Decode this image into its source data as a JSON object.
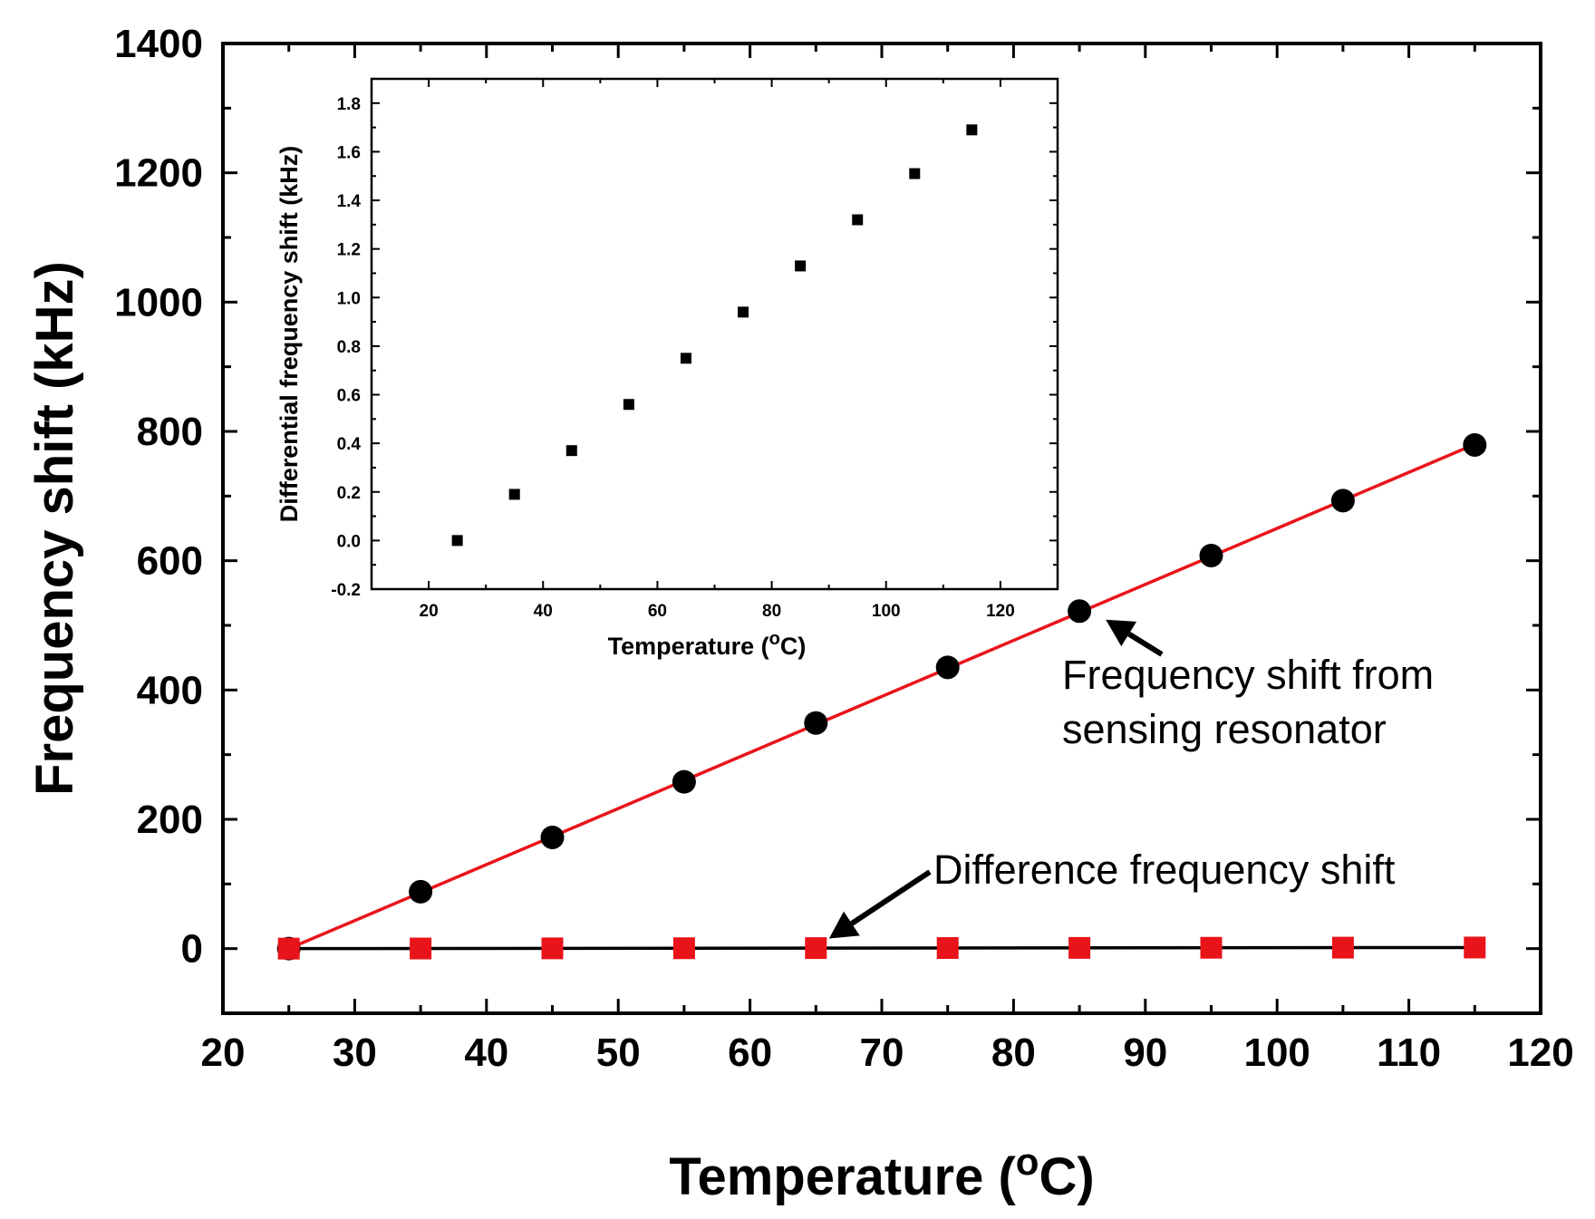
{
  "chart_data": [
    {
      "type": "scatter",
      "xlabel": "Temperature (",
      "xlabel_sup": "o",
      "xlabel_tail": "C)",
      "ylabel": "Frequency shift (kHz)",
      "xlim": [
        20,
        120
      ],
      "ylim": [
        -100,
        1400
      ],
      "xticks": [
        20,
        30,
        40,
        50,
        60,
        70,
        80,
        90,
        100,
        110,
        120
      ],
      "yticks": [
        0,
        200,
        400,
        600,
        800,
        1000,
        1200,
        1400
      ],
      "series": [
        {
          "marker": "circle",
          "color": "#000000",
          "x": [
            25,
            35,
            45,
            55,
            65,
            75,
            85,
            95,
            105,
            115
          ],
          "y": [
            0,
            88,
            172,
            258,
            349,
            435,
            522,
            608,
            693,
            779
          ],
          "fit_line": {
            "color": "#e8141a",
            "x": [
              25,
              115
            ],
            "y": [
              0,
              780
            ]
          }
        },
        {
          "marker": "square",
          "color": "#e8141a",
          "x": [
            25,
            35,
            45,
            55,
            65,
            75,
            85,
            95,
            105,
            115
          ],
          "y": [
            0,
            0.2,
            0.4,
            0.6,
            0.8,
            0.9,
            1.1,
            1.3,
            1.5,
            1.7
          ],
          "fit_line": {
            "color": "#000000",
            "x": [
              25,
              115
            ],
            "y": [
              0,
              1.7
            ]
          }
        }
      ],
      "annotations": [
        {
          "text_lines": [
            "Frequency shift from",
            "sensing resonator"
          ],
          "arrow_to": [
            87,
            520
          ]
        },
        {
          "text_lines": [
            "Difference frequency shift"
          ],
          "arrow_to": [
            66,
            10
          ]
        }
      ]
    },
    {
      "type": "scatter",
      "role": "inset",
      "xlabel": "Temperature (",
      "xlabel_sup": "o",
      "xlabel_tail": "C)",
      "ylabel": "Differential frequency shift (kHz)",
      "xlim": [
        10,
        130
      ],
      "ylim": [
        -0.2,
        1.9
      ],
      "xticks": [
        20,
        40,
        60,
        80,
        100,
        120
      ],
      "yticks": [
        "-0.2",
        "0.0",
        "0.2",
        "0.4",
        "0.6",
        "0.8",
        "1.0",
        "1.2",
        "1.4",
        "1.6",
        "1.8"
      ],
      "series": [
        {
          "marker": "square",
          "color": "#000000",
          "x": [
            25,
            35,
            45,
            55,
            65,
            75,
            85,
            95,
            105,
            115
          ],
          "y": [
            0.0,
            0.19,
            0.37,
            0.56,
            0.75,
            0.94,
            1.13,
            1.32,
            1.51,
            1.69
          ]
        }
      ]
    }
  ]
}
